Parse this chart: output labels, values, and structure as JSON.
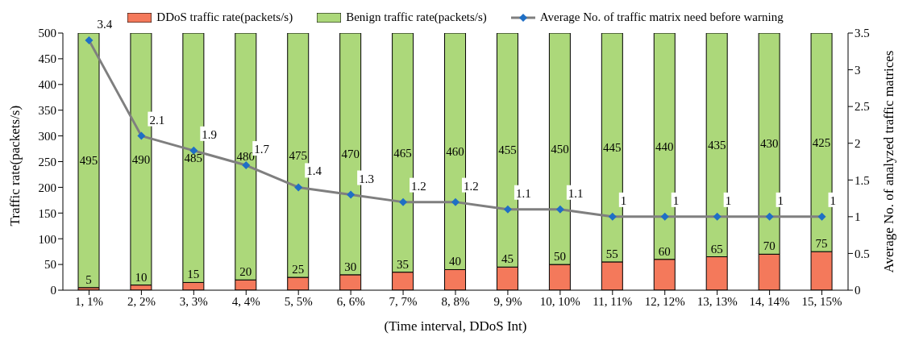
{
  "chart_data": {
    "type": "bar",
    "stacked": true,
    "xlabel": "(Time interval, DDoS Int)",
    "ylabel": "Traffic rate(packets/s)",
    "y2label": "Average No. of  analyzed traffic matrices",
    "categories": [
      "1, 1%",
      "2, 2%",
      "3, 3%",
      "4, 4%",
      "5, 5%",
      "6, 6%",
      "7, 7%",
      "8, 8%",
      "9, 9%",
      "10, 10%",
      "11, 11%",
      "12, 12%",
      "13, 13%",
      "14, 14%",
      "15, 15%"
    ],
    "series": [
      {
        "name": "DDoS traffic rate(packets/s)",
        "color": "#f4795b",
        "values": [
          5,
          10,
          15,
          20,
          25,
          30,
          35,
          40,
          45,
          50,
          55,
          60,
          65,
          70,
          75
        ]
      },
      {
        "name": "Benign traffic rate(packets/s)",
        "color": "#acd87a",
        "values": [
          495,
          490,
          485,
          480,
          475,
          470,
          465,
          460,
          455,
          450,
          445,
          440,
          435,
          430,
          425
        ]
      },
      {
        "name": "Average No. of  traffic matrix need before warning",
        "type": "line",
        "axis": "y2",
        "marker": "diamond",
        "color": "#7f7f7f",
        "colors": [
          "#1f6fc5",
          "#1f6fc5",
          "#1f6fc5",
          "#1f6fc5",
          "#1f6fc5",
          "#1f6fc5",
          "#1f6fc5",
          "#1f6fc5",
          "#1f6fc5",
          "#1f6fc5",
          "#1f6fc5",
          "#1f6fc5",
          "#1f6fc5",
          "#1f6fc5",
          "#1f6fc5"
        ],
        "values": [
          3.4,
          2.1,
          1.9,
          1.7,
          1.4,
          1.3,
          1.2,
          1.2,
          1.1,
          1.1,
          1,
          1,
          1,
          1,
          1
        ]
      }
    ],
    "ylim": [
      0,
      500
    ],
    "yticks": [
      0,
      50,
      100,
      150,
      200,
      250,
      300,
      350,
      400,
      450,
      500
    ],
    "y2lim": [
      0,
      3.5
    ],
    "y2ticks": [
      0,
      0.5,
      1,
      1.5,
      2,
      2.5,
      3,
      3.5
    ],
    "data_labels": true,
    "legend": "top",
    "grid": false
  }
}
